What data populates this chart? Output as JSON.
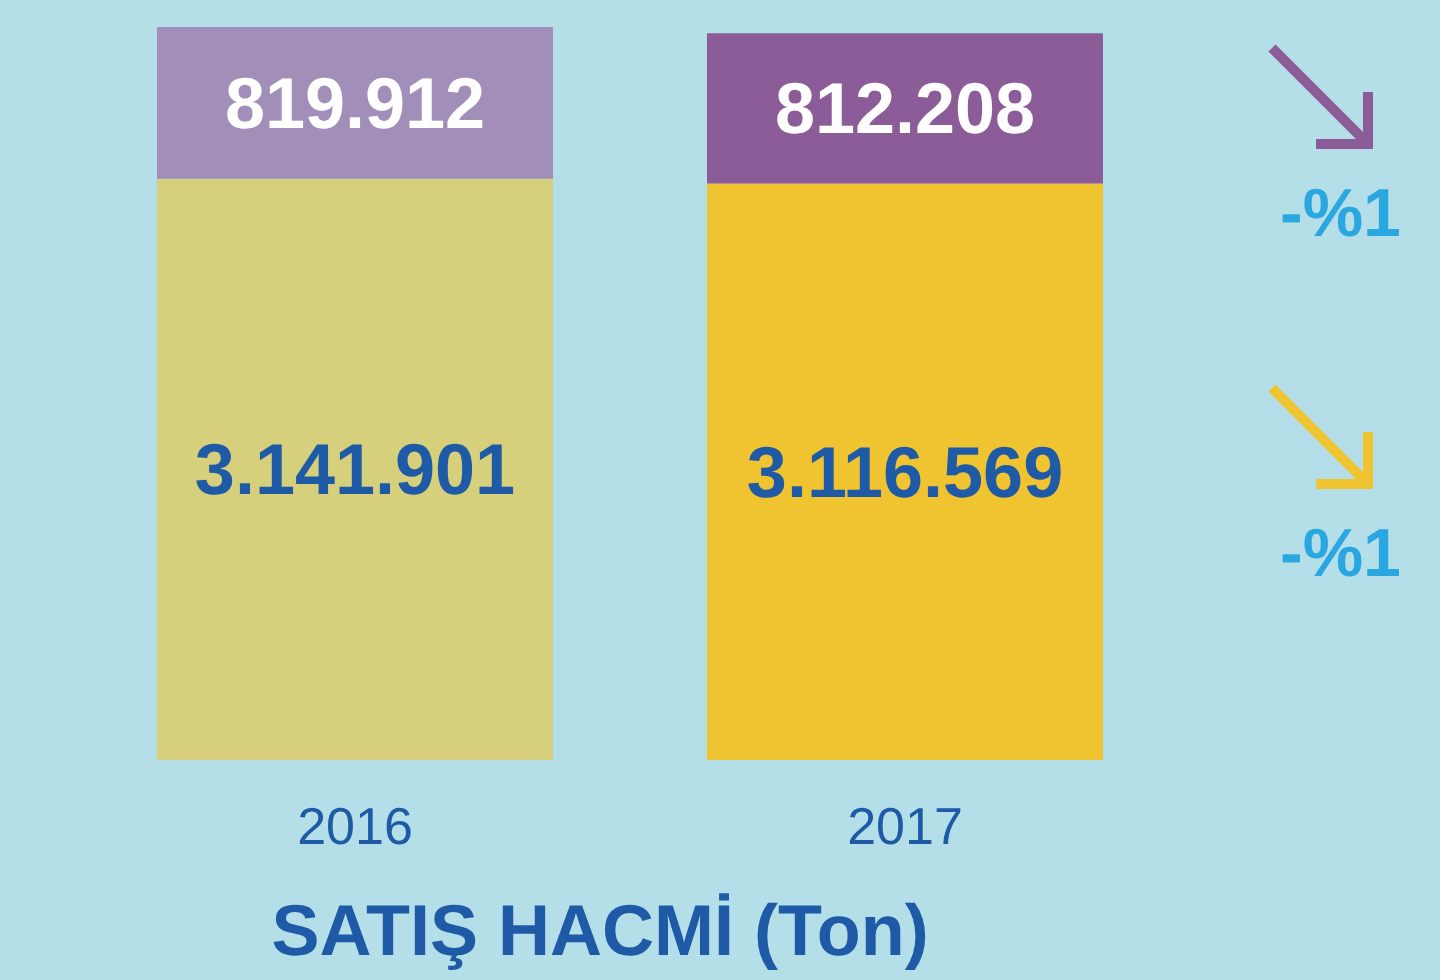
{
  "chart_data": {
    "type": "bar",
    "title": "SATIŞ HACMİ (Ton)",
    "categories": [
      "2016",
      "2017"
    ],
    "stacked": true,
    "tick_labels": "x",
    "series": [
      {
        "colors": [
          "#d6cf7c",
          "#f0c431"
        ],
        "values": [
          3141901,
          3116569
        ],
        "value_labels": [
          "3.141.901",
          "3.116.569"
        ]
      },
      {
        "colors": [
          "#a28fb9",
          "#8b5c98"
        ],
        "values": [
          819912,
          812208
        ],
        "value_labels": [
          "819.912",
          "812.208"
        ]
      }
    ],
    "annotations": [
      "-%1",
      "-%1"
    ]
  }
}
